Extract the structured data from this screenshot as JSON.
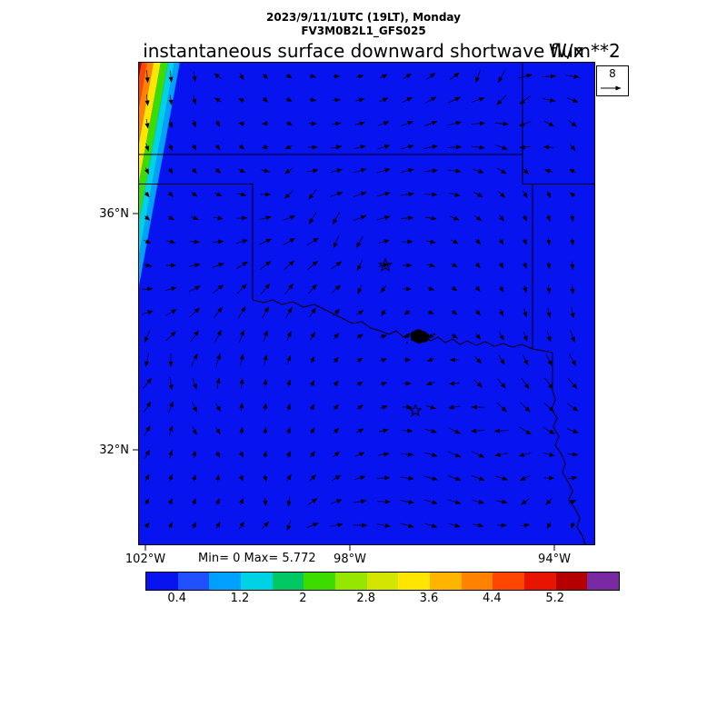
{
  "header": {
    "datetime_line": "2023/9/11/1UTC (19LT), Monday",
    "model_line": "FV3M0B2L1_GFS025",
    "title": "instantaneous surface downward shortwave flux",
    "units": "W/m**2"
  },
  "wind_reference": {
    "value": "8"
  },
  "stats_text": "Min= 0 Max= 5.772",
  "axes": {
    "lat_labels": [
      "36°N",
      "32°N"
    ],
    "lon_labels": [
      "102°W",
      "98°W",
      "94°W"
    ]
  },
  "colorbar": {
    "tick_labels": [
      "0.4",
      "1.2",
      "2",
      "2.8",
      "3.6",
      "4.4",
      "5.2"
    ],
    "colors": [
      "#0714ef",
      "#2050ff",
      "#00a0ff",
      "#00d2e6",
      "#00c864",
      "#3cdc00",
      "#96e600",
      "#d2e600",
      "#ffe600",
      "#ffb400",
      "#ff8200",
      "#ff4600",
      "#e61400",
      "#b40000",
      "#7828a0"
    ]
  },
  "map": {
    "fill_color": "#0714ef",
    "terminator_colors": [
      "#7828a0",
      "#b40000",
      "#ff4600",
      "#ff8200",
      "#ffe600",
      "#3cdc00",
      "#00d2e6",
      "#00a0ff"
    ]
  },
  "chart_data": {
    "type": "heatmap",
    "title": "instantaneous surface downward shortwave flux",
    "units": "W/m**2",
    "valid_time": "2023/9/11/1UTC (19LT), Monday",
    "model_run": "FV3M0B2L1_GFS025",
    "stats": {
      "min": 0,
      "max": 5.772
    },
    "colorbar_tick_values": [
      0.4,
      1.2,
      2,
      2.8,
      3.6,
      4.4,
      5.2
    ],
    "colorbar_level_step": 0.4,
    "lat_tick_labels": [
      "36°N",
      "32°N"
    ],
    "lon_tick_labels": [
      "102°W",
      "98°W",
      "94°W"
    ],
    "wind_reference_value": 8,
    "field_summary": "Pre-dawn field: nearly the entire domain is 0 W/m**2 (solid blue); a narrow sunlit terminator gradient band hugs the far northwest corner, increasing through cyan/green/yellow/orange/red up to the 5.772 maximum at the corner.",
    "overlays": [
      "wind vector arrows",
      "state borders (KS/OK/MO/AR/TX/LA)",
      "Red River and Sabine River boundaries",
      "two open-star city markers"
    ]
  }
}
